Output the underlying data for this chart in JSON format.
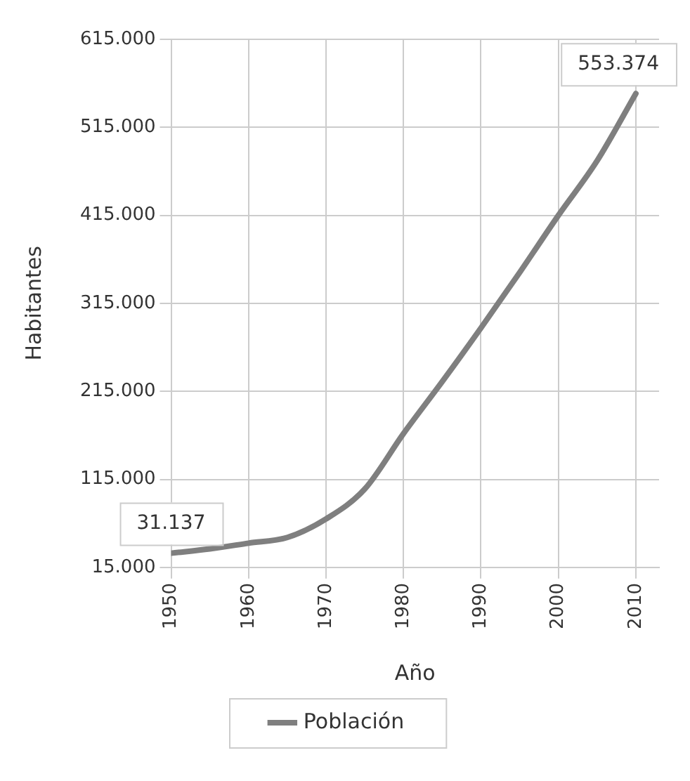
{
  "chart_data": {
    "type": "line",
    "xlabel": "Año",
    "ylabel": "Habitantes",
    "x": [
      1950,
      1955,
      1960,
      1965,
      1970,
      1975,
      1980,
      1985,
      1990,
      1995,
      2000,
      2005,
      2010
    ],
    "series": [
      {
        "name": "Población",
        "color": "#7f7f7f",
        "values": [
          31137,
          36000,
          42500,
          49000,
          70000,
          104000,
          167000,
          226000,
          287000,
          350000,
          415000,
          477000,
          553374
        ]
      }
    ],
    "xlim": [
      1950,
      2013
    ],
    "xticks": [
      1950,
      1960,
      1970,
      1980,
      1990,
      2000,
      2010
    ],
    "ylim": [
      15000,
      615000
    ],
    "yticks": [
      {
        "value": 15000,
        "label": "15.000"
      },
      {
        "value": 115000,
        "label": "115.000"
      },
      {
        "value": 215000,
        "label": "215.000"
      },
      {
        "value": 315000,
        "label": "315.000"
      },
      {
        "value": 415000,
        "label": "415.000"
      },
      {
        "value": 515000,
        "label": "515.000"
      },
      {
        "value": 615000,
        "label": "615.000"
      }
    ],
    "annotations": [
      {
        "text": "31.137",
        "x": 1950,
        "y": 31137
      },
      {
        "text": "553.374",
        "x": 2010,
        "y": 553374
      }
    ],
    "grid": true,
    "legend": "bottom",
    "marker": "none",
    "line_style": "solid"
  }
}
